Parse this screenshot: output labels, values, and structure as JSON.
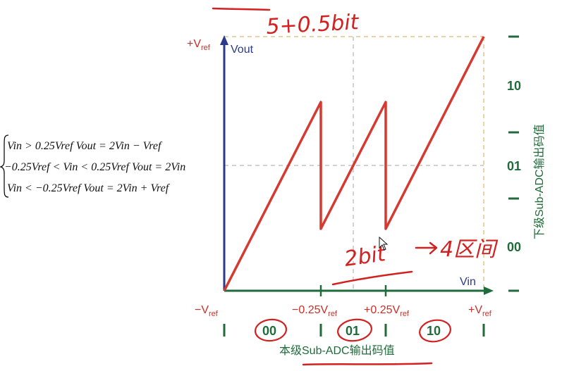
{
  "labels": {
    "pos_vref_top": "+V",
    "ref_sub": "ref",
    "vout": "Vout",
    "vin": "Vin",
    "neg_vref": "−V",
    "neg_quarter": "−0.25V",
    "pos_quarter": "+0.25V",
    "pos_vref_right": "+V"
  },
  "bottom_codes": [
    "00",
    "01",
    "10"
  ],
  "bottom_title": "本级Sub-ADC输出码值",
  "right_codes": [
    "10",
    "01",
    "00"
  ],
  "right_title": "下级Sub-ADC输出码值",
  "equations": [
    "Vin > 0.25Vref   Vout = 2Vin − Vref",
    "−0.25Vref < Vin < 0.25Vref   Vout = 2Vin",
    "Vin < −0.25Vref   Vout = 2Vin + Vref"
  ],
  "handwriting": {
    "top": "5+0.5bit",
    "mid_left": "2bit",
    "mid_right": "4区间"
  },
  "colors": {
    "curve": "#d6392f",
    "axis_y": "#2b3a8a",
    "axis_x": "#1f6b3a",
    "dashed": "#b8b8b8",
    "dashed_frame": "#e0c58a",
    "ink": "#d32020"
  }
}
